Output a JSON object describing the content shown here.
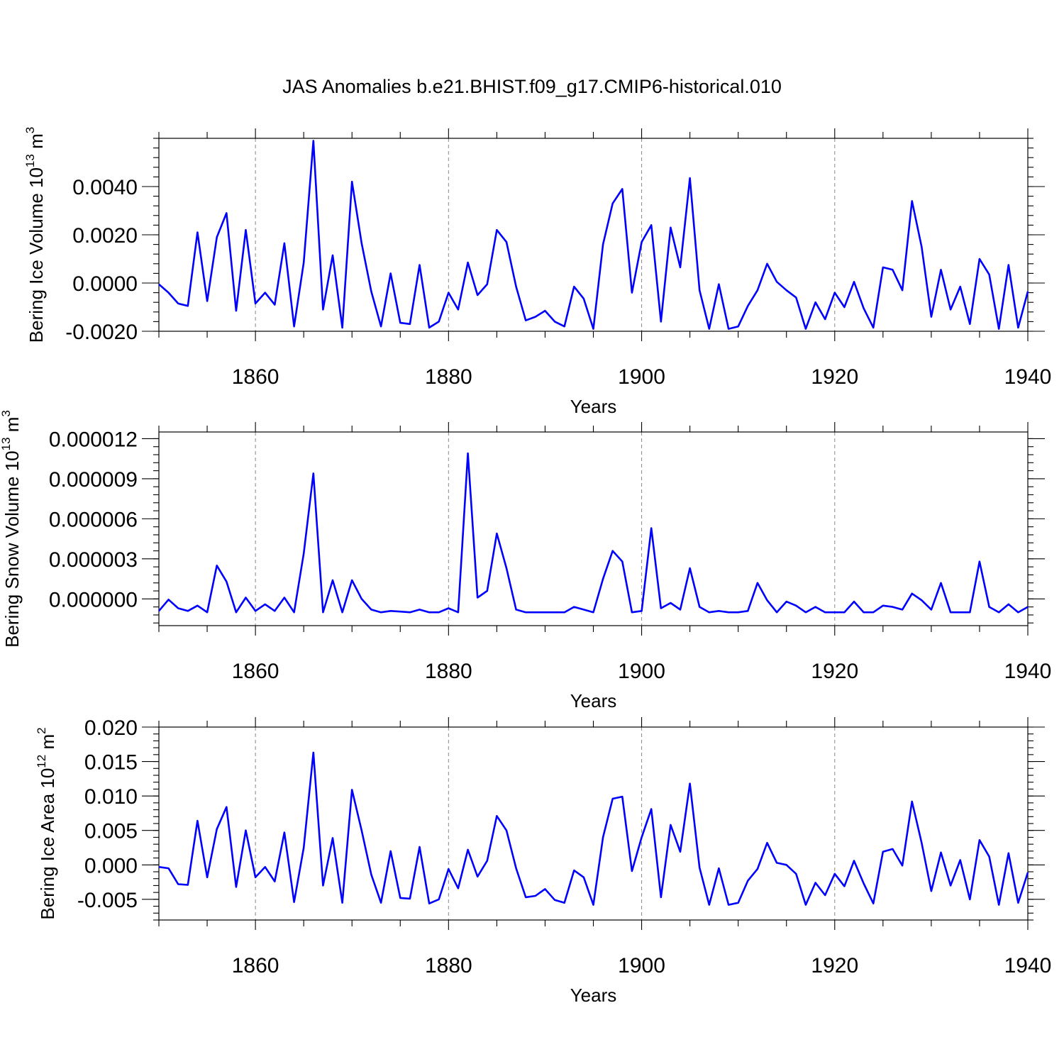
{
  "chart_data": {
    "title": "JAS Anomalies b.e21.BHIST.f09_g17.CMIP6-historical.010",
    "line_color": "#0000ff",
    "panels": [
      {
        "type": "line",
        "name": "ice-volume",
        "ylabel": "Bering Ice Volume 10",
        "ylabel_sup": "13",
        "ylabel_unit": "m",
        "ylabel_unit_sup": "3",
        "xlabel": "Years",
        "xlim": [
          1850,
          1940
        ],
        "ylim": [
          -0.002,
          0.006
        ],
        "x_ticks": [
          1860,
          1880,
          1900,
          1920,
          1940
        ],
        "x_tick_labels": [
          "1860",
          "1880",
          "1900",
          "1920",
          "1940"
        ],
        "y_ticks": [
          -0.002,
          0.0,
          0.002,
          0.004
        ],
        "y_tick_labels": [
          "-0.0020",
          "0.0000",
          "0.0020",
          "0.0040"
        ],
        "x": [
          1850,
          1851,
          1852,
          1853,
          1854,
          1855,
          1856,
          1857,
          1858,
          1859,
          1860,
          1861,
          1862,
          1863,
          1864,
          1865,
          1866,
          1867,
          1868,
          1869,
          1870,
          1871,
          1872,
          1873,
          1874,
          1875,
          1876,
          1877,
          1878,
          1879,
          1880,
          1881,
          1882,
          1883,
          1884,
          1885,
          1886,
          1887,
          1888,
          1889,
          1890,
          1891,
          1892,
          1893,
          1894,
          1895,
          1896,
          1897,
          1898,
          1899,
          1900,
          1901,
          1902,
          1903,
          1904,
          1905,
          1906,
          1907,
          1908,
          1909,
          1910,
          1911,
          1912,
          1913,
          1914,
          1915,
          1916,
          1917,
          1918,
          1919,
          1920,
          1921,
          1922,
          1923,
          1924,
          1925,
          1926,
          1927,
          1928,
          1929,
          1930,
          1931,
          1932,
          1933,
          1934,
          1935,
          1936,
          1937,
          1938,
          1939,
          1940
        ],
        "y": [
          -5e-05,
          -0.0004,
          -0.00085,
          -0.00095,
          0.0021,
          -0.00075,
          0.0019,
          0.0029,
          -0.00115,
          0.0022,
          -0.00085,
          -0.0004,
          -0.0009,
          0.00165,
          -0.0018,
          0.00085,
          0.0059,
          -0.0011,
          0.00115,
          -0.00185,
          0.0042,
          0.00165,
          -0.00035,
          -0.0018,
          0.0004,
          -0.00165,
          -0.0017,
          0.00075,
          -0.00185,
          -0.0016,
          -0.0004,
          -0.0011,
          0.00085,
          -0.0005,
          -5e-05,
          0.0022,
          0.0017,
          -0.00015,
          -0.00155,
          -0.0014,
          -0.00115,
          -0.0016,
          -0.0018,
          -0.00015,
          -0.00065,
          -0.0019,
          0.0016,
          0.0033,
          0.0039,
          -0.0004,
          0.0017,
          0.0024,
          -0.0016,
          0.0023,
          0.00065,
          0.00435,
          -0.0003,
          -0.0019,
          -5e-05,
          -0.0019,
          -0.0018,
          -0.00095,
          -0.0003,
          0.0008,
          5e-05,
          -0.0003,
          -0.0006,
          -0.0019,
          -0.0008,
          -0.0015,
          -0.0004,
          -0.001,
          5e-05,
          -0.00105,
          -0.00185,
          0.00065,
          0.00055,
          -0.0003,
          0.0034,
          0.0015,
          -0.0014,
          0.00055,
          -0.0011,
          -0.00015,
          -0.0017,
          0.001,
          0.00035,
          -0.0019,
          0.00075,
          -0.00185,
          -0.00035
        ]
      },
      {
        "type": "line",
        "name": "snow-volume",
        "ylabel": "Bering Snow Volume 10",
        "ylabel_sup": "13",
        "ylabel_unit": "m",
        "ylabel_unit_sup": "3",
        "xlabel": "Years",
        "xlim": [
          1850,
          1940
        ],
        "ylim": [
          -2e-06,
          1.25e-05
        ],
        "x_ticks": [
          1860,
          1880,
          1900,
          1920,
          1940
        ],
        "x_tick_labels": [
          "1860",
          "1880",
          "1900",
          "1920",
          "1940"
        ],
        "y_ticks": [
          0.0,
          3e-06,
          6e-06,
          9e-06,
          1.2e-05
        ],
        "y_tick_labels": [
          "0.000000",
          "0.000003",
          "0.000006",
          "0.000009",
          "0.000012"
        ],
        "x": [
          1850,
          1851,
          1852,
          1853,
          1854,
          1855,
          1856,
          1857,
          1858,
          1859,
          1860,
          1861,
          1862,
          1863,
          1864,
          1865,
          1866,
          1867,
          1868,
          1869,
          1870,
          1871,
          1872,
          1873,
          1874,
          1875,
          1876,
          1877,
          1878,
          1879,
          1880,
          1881,
          1882,
          1883,
          1884,
          1885,
          1886,
          1887,
          1888,
          1889,
          1890,
          1891,
          1892,
          1893,
          1894,
          1895,
          1896,
          1897,
          1898,
          1899,
          1900,
          1901,
          1902,
          1903,
          1904,
          1905,
          1906,
          1907,
          1908,
          1909,
          1910,
          1911,
          1912,
          1913,
          1914,
          1915,
          1916,
          1917,
          1918,
          1919,
          1920,
          1921,
          1922,
          1923,
          1924,
          1925,
          1926,
          1927,
          1928,
          1929,
          1930,
          1931,
          1932,
          1933,
          1934,
          1935,
          1936,
          1937,
          1938,
          1939,
          1940
        ],
        "y": [
          -9e-07,
          -5e-08,
          -7e-07,
          -9e-07,
          -5e-07,
          -1e-06,
          2.5e-06,
          1.3e-06,
          -1e-06,
          1e-07,
          -9e-07,
          -4e-07,
          -9e-07,
          1e-07,
          -1e-06,
          3.4e-06,
          9.4e-06,
          -1e-06,
          1.4e-06,
          -1e-06,
          1.4e-06,
          0.0,
          -8e-07,
          -1e-06,
          -9e-07,
          -9.5e-07,
          -1e-06,
          -8e-07,
          -1e-06,
          -1e-06,
          -7e-07,
          -1e-06,
          1.09e-05,
          1e-07,
          6e-07,
          4.9e-06,
          2.3e-06,
          -8e-07,
          -1e-06,
          -1e-06,
          -1e-06,
          -1e-06,
          -1e-06,
          -6e-07,
          -8e-07,
          -1e-06,
          1.5e-06,
          3.6e-06,
          2.8e-06,
          -1e-06,
          -9e-07,
          5.3e-06,
          -7e-07,
          -3e-07,
          -8e-07,
          2.3e-06,
          -6e-07,
          -1e-06,
          -9e-07,
          -1e-06,
          -1e-06,
          -9e-07,
          1.2e-06,
          -1e-07,
          -1e-06,
          -2e-07,
          -5e-07,
          -1e-06,
          -6e-07,
          -1e-06,
          -1e-06,
          -1e-06,
          -2e-07,
          -1e-06,
          -1e-06,
          -5e-07,
          -6e-07,
          -8e-07,
          4e-07,
          -1e-07,
          -8e-07,
          1.2e-06,
          -1e-06,
          -1e-06,
          -1e-06,
          2.8e-06,
          -6e-07,
          -1e-06,
          -4e-07,
          -1e-06,
          -6e-07
        ]
      },
      {
        "type": "line",
        "name": "ice-area",
        "ylabel": "Bering Ice Area 10",
        "ylabel_sup": "12",
        "ylabel_unit": "m",
        "ylabel_unit_sup": "2",
        "xlabel": "Years",
        "xlim": [
          1850,
          1940
        ],
        "ylim": [
          -0.008,
          0.02
        ],
        "x_ticks": [
          1860,
          1880,
          1900,
          1920,
          1940
        ],
        "x_tick_labels": [
          "1860",
          "1880",
          "1900",
          "1920",
          "1940"
        ],
        "y_ticks": [
          -0.005,
          0.0,
          0.005,
          0.01,
          0.015,
          0.02
        ],
        "y_tick_labels": [
          "-0.005",
          "0.000",
          "0.005",
          "0.010",
          "0.015",
          "0.020"
        ],
        "x": [
          1850,
          1851,
          1852,
          1853,
          1854,
          1855,
          1856,
          1857,
          1858,
          1859,
          1860,
          1861,
          1862,
          1863,
          1864,
          1865,
          1866,
          1867,
          1868,
          1869,
          1870,
          1871,
          1872,
          1873,
          1874,
          1875,
          1876,
          1877,
          1878,
          1879,
          1880,
          1881,
          1882,
          1883,
          1884,
          1885,
          1886,
          1887,
          1888,
          1889,
          1890,
          1891,
          1892,
          1893,
          1894,
          1895,
          1896,
          1897,
          1898,
          1899,
          1900,
          1901,
          1902,
          1903,
          1904,
          1905,
          1906,
          1907,
          1908,
          1909,
          1910,
          1911,
          1912,
          1913,
          1914,
          1915,
          1916,
          1917,
          1918,
          1919,
          1920,
          1921,
          1922,
          1923,
          1924,
          1925,
          1926,
          1927,
          1928,
          1929,
          1930,
          1931,
          1932,
          1933,
          1934,
          1935,
          1936,
          1937,
          1938,
          1939,
          1940
        ],
        "y": [
          -0.0003,
          -0.0005,
          -0.0028,
          -0.0029,
          0.0064,
          -0.0018,
          0.0052,
          0.0084,
          -0.0032,
          0.005,
          -0.0018,
          -0.0003,
          -0.0024,
          0.0047,
          -0.0054,
          0.0025,
          0.0163,
          -0.003,
          0.0039,
          -0.0055,
          0.0109,
          0.005,
          -0.0014,
          -0.0055,
          0.002,
          -0.0048,
          -0.0049,
          0.0026,
          -0.0056,
          -0.005,
          -0.0006,
          -0.0034,
          0.0022,
          -0.0017,
          0.0006,
          0.0071,
          0.005,
          -0.0005,
          -0.0047,
          -0.0045,
          -0.0035,
          -0.0051,
          -0.0055,
          -0.0008,
          -0.0018,
          -0.0058,
          0.004,
          0.0096,
          0.0099,
          -0.0009,
          0.004,
          0.0081,
          -0.0047,
          0.0058,
          0.0019,
          0.0118,
          -0.0004,
          -0.0058,
          -0.0005,
          -0.0058,
          -0.0055,
          -0.0023,
          -0.0006,
          0.0032,
          0.0003,
          0.0,
          -0.0013,
          -0.0058,
          -0.0026,
          -0.0044,
          -0.0013,
          -0.0031,
          0.0006,
          -0.0027,
          -0.0056,
          0.0019,
          0.0023,
          -0.0001,
          0.0092,
          0.0032,
          -0.0038,
          0.0018,
          -0.003,
          0.0007,
          -0.005,
          0.0036,
          0.0012,
          -0.0058,
          0.0017,
          -0.0055,
          -0.0011
        ]
      }
    ]
  }
}
